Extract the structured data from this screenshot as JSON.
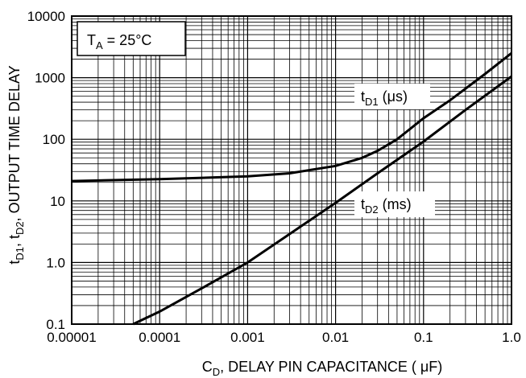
{
  "chart_data": {
    "type": "line",
    "x_scale": "log",
    "y_scale": "log",
    "xlim": [
      1e-05,
      1.0
    ],
    "ylim": [
      0.1,
      10000
    ],
    "grid": true,
    "xlabel": {
      "main": "C",
      "sub": "D",
      "rest": ", DELAY PIN CAPACITANCE ( μF)"
    },
    "ylabel": {
      "p1": "t",
      "s1": "D1",
      "p2": ", t",
      "s2": "D2",
      "p3": ", OUTPUT TIME DELAY"
    },
    "x_tick_labels": [
      "0.00001",
      "0.0001",
      "0.001",
      "0.01",
      "0.1",
      "1.0"
    ],
    "y_tick_labels": [
      "0.1",
      "1.0",
      "10",
      "100",
      "1000",
      "10000"
    ],
    "condition": {
      "main": "T",
      "sub": "A",
      "rest": " = 25°C"
    },
    "series": [
      {
        "name": "tD1 (μs)",
        "label": {
          "main": "t",
          "sub": "D1",
          "rest": " (μs)"
        },
        "x": [
          1e-05,
          0.0001,
          0.001,
          0.003,
          0.01,
          0.02,
          0.03,
          0.05,
          0.1,
          0.2,
          0.5,
          1.0
        ],
        "y": [
          21,
          22.5,
          25,
          28,
          37,
          50,
          65,
          100,
          220,
          430,
          1150,
          2500
        ]
      },
      {
        "name": "tD2 (ms)",
        "label": {
          "main": "t",
          "sub": "D2",
          "rest": " (ms)"
        },
        "x": [
          5e-05,
          0.0001,
          0.0003,
          0.001,
          0.003,
          0.01,
          0.03,
          0.1,
          0.3,
          1.0
        ],
        "y": [
          0.1,
          0.16,
          0.38,
          1.0,
          2.9,
          9.3,
          28,
          92,
          300,
          1050
        ]
      }
    ]
  }
}
